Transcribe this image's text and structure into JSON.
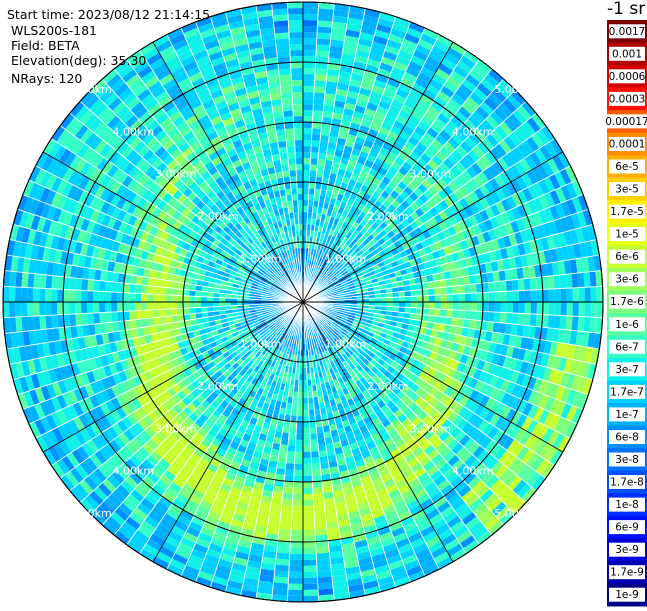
{
  "header": {
    "start_time": "Start time: 2023/08/12 21:14:15",
    "instrument": "WLS200s-181",
    "field": "Field: BETA",
    "elevation": "Elevation(deg): 35.30",
    "nrays": "NRays: 120",
    "units": "-1 sr"
  },
  "chart_data": {
    "type": "heatmap",
    "subtype": "polar-ppi",
    "field": "BETA",
    "elevation_deg": 35.3,
    "nrays": 120,
    "range_rings_km": [
      1.0,
      2.0,
      3.0,
      4.0,
      5.0
    ],
    "ring_labels": {
      "1": "1.00km",
      "2": "2.00km",
      "3": "3.00km",
      "4": "4.00km",
      "5": "5.00km"
    },
    "max_range_km": 5.0,
    "spokes_deg": [
      0,
      30,
      60,
      90,
      120,
      150,
      180,
      210,
      240,
      270,
      300,
      330
    ],
    "colorbar": {
      "scale": "log",
      "labels": [
        "0.0017",
        "0.001",
        "0.0006",
        "0.0003",
        "0.00017",
        "0.0001",
        "6e-5",
        "3e-5",
        "1.7e-5",
        "1e-5",
        "6e-6",
        "3e-6",
        "1.7e-6",
        "1e-6",
        "6e-7",
        "3e-7",
        "1.7e-7",
        "1e-7",
        "6e-8",
        "3e-8",
        "1.7e-8",
        "1e-8",
        "6e-9",
        "3e-9",
        "1.7e-9",
        "1e-9"
      ],
      "colors": [
        "#7f0000",
        "#b00000",
        "#d40000",
        "#ff1000",
        "#ff5a00",
        "#ff8c00",
        "#ffb000",
        "#ffd000",
        "#fff000",
        "#e8ff10",
        "#c6ff30",
        "#a0ff58",
        "#7cff7c",
        "#58ffa0",
        "#34ffc6",
        "#10f0e8",
        "#00d0ff",
        "#00b0ff",
        "#0090ff",
        "#0070ff",
        "#0050ff",
        "#0030ff",
        "#0010f8",
        "#0000d8",
        "#0000b0",
        "#00008a"
      ]
    },
    "dominant_value_range": [
      "1e-9",
      "1e-5"
    ],
    "notes": "Backscatter values mostly 1e-8 to 1e-7 (blue/cyan), with an enhanced ring (green-yellow, ~1e-6 to 1.7e-5) near 2.5-4 km range."
  }
}
